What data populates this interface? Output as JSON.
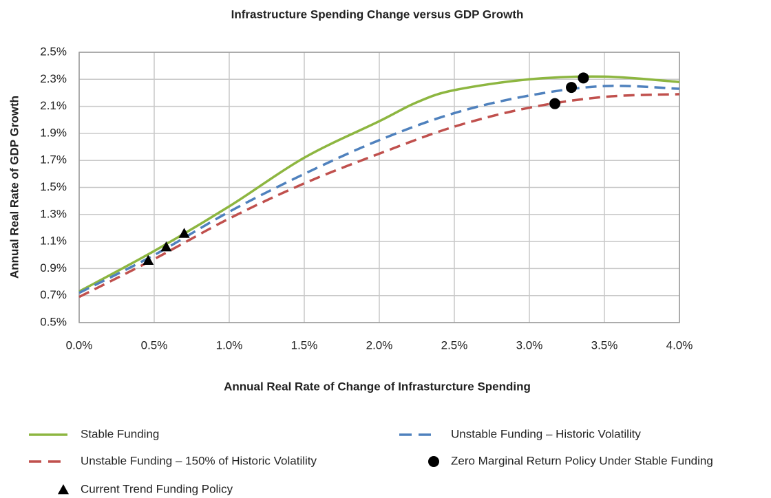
{
  "chart_data": {
    "type": "line",
    "title": "Infrastructure Spending Change versus GDP Growth",
    "x_label": "Annual Real Rate of Change of Infrasturcture Spending",
    "y_label": "Annual Real Rate of GDP Growth",
    "xlim": [
      0,
      4
    ],
    "ylim": [
      0.5,
      2.5
    ],
    "xticks": [
      {
        "value": 0,
        "label": "0.0%"
      },
      {
        "value": 0.5,
        "label": "0.5%"
      },
      {
        "value": 1,
        "label": "1.0%"
      },
      {
        "value": 1.5,
        "label": "1.5%"
      },
      {
        "value": 2,
        "label": "2.0%"
      },
      {
        "value": 2.5,
        "label": "2.5%"
      },
      {
        "value": 3,
        "label": "3.0%"
      },
      {
        "value": 3.5,
        "label": "3.5%"
      },
      {
        "value": 4,
        "label": "4.0%"
      }
    ],
    "yticks": [
      {
        "value": 0.5,
        "label": "0.5%"
      },
      {
        "value": 0.7,
        "label": "0.7%"
      },
      {
        "value": 0.9,
        "label": "0.9%"
      },
      {
        "value": 1.1,
        "label": "1.1%"
      },
      {
        "value": 1.3,
        "label": "1.3%"
      },
      {
        "value": 1.5,
        "label": "1.5%"
      },
      {
        "value": 1.7,
        "label": "1.7%"
      },
      {
        "value": 1.9,
        "label": "1.9%"
      },
      {
        "value": 2.1,
        "label": "2.1%"
      },
      {
        "value": 2.3,
        "label": "2.3%"
      },
      {
        "value": 2.5,
        "label": "2.5%"
      }
    ],
    "grid": true,
    "legend": "bottom",
    "series": [
      {
        "name": "Stable Funding",
        "color": "#8db640",
        "mode": "line",
        "dash": false,
        "x": [
          0,
          0.5,
          1,
          1.5,
          2,
          2.25,
          2.5,
          3,
          3.5,
          4
        ],
        "values": [
          0.73,
          1.03,
          1.36,
          1.72,
          1.99,
          2.13,
          2.22,
          2.3,
          2.32,
          2.28
        ]
      },
      {
        "name": "Unstable Funding – Historic Volatility",
        "color": "#4f81bd",
        "mode": "line",
        "dash": true,
        "x": [
          0,
          0.5,
          1,
          1.5,
          2,
          2.5,
          3,
          3.5,
          4
        ],
        "values": [
          0.72,
          1.0,
          1.32,
          1.6,
          1.85,
          2.05,
          2.18,
          2.25,
          2.23
        ]
      },
      {
        "name": "Unstable Funding – 150% of Historic Volatility",
        "color": "#c0504d",
        "mode": "line",
        "dash": true,
        "x": [
          0,
          0.5,
          1,
          1.5,
          2,
          2.5,
          3,
          3.5,
          4
        ],
        "values": [
          0.69,
          0.97,
          1.27,
          1.53,
          1.75,
          1.95,
          2.09,
          2.17,
          2.19
        ]
      },
      {
        "name": "Zero Marginal Return Policy Under Stable Funding",
        "color": "#000000",
        "mode": "marker",
        "marker": "circle",
        "x": [
          3.17,
          3.28,
          3.36
        ],
        "values": [
          2.12,
          2.24,
          2.31
        ]
      },
      {
        "name": "Current Trend Funding Policy",
        "color": "#000000",
        "mode": "marker",
        "marker": "triangle",
        "x": [
          0.46,
          0.58,
          0.7
        ],
        "values": [
          0.96,
          1.06,
          1.16
        ]
      }
    ]
  }
}
